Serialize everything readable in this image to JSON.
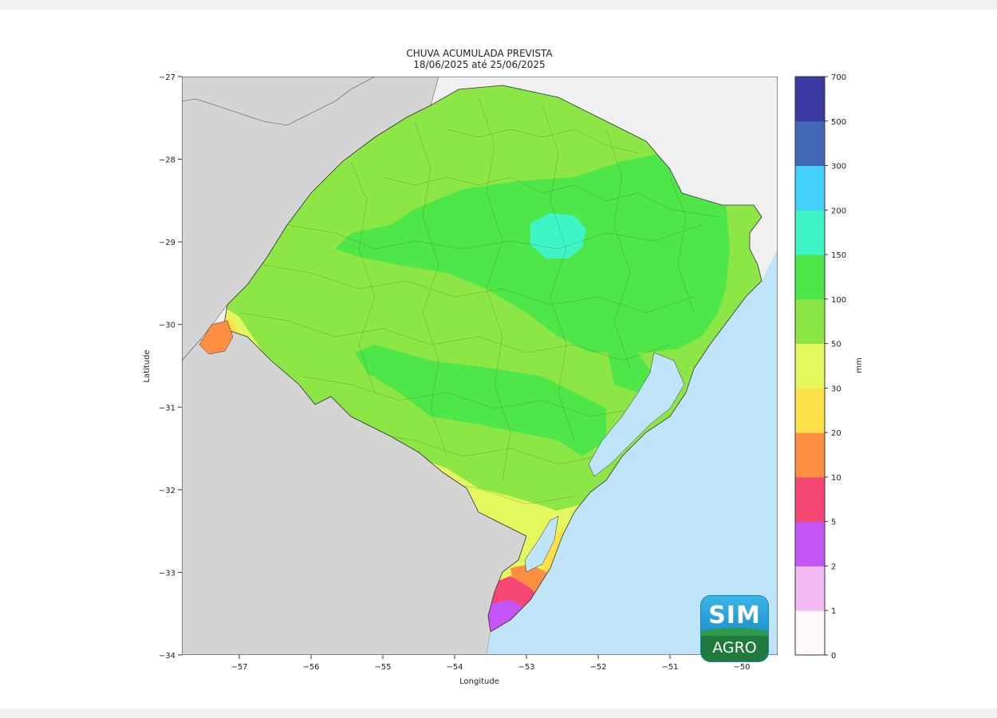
{
  "map": {
    "title_line1": "CHUVA ACUMULADA PREVISTA",
    "title_line2": "18/06/2025 até 25/06/2025",
    "xlabel": "Longitude",
    "ylabel": "Latitude",
    "xlim": [
      -57.8,
      -49.5
    ],
    "ylim": [
      -34,
      -27
    ],
    "xticks": [
      {
        "value": -57,
        "label": "−57"
      },
      {
        "value": -56,
        "label": "−56"
      },
      {
        "value": -55,
        "label": "−55"
      },
      {
        "value": -54,
        "label": "−54"
      },
      {
        "value": -53,
        "label": "−53"
      },
      {
        "value": -52,
        "label": "−52"
      },
      {
        "value": -51,
        "label": "−51"
      },
      {
        "value": -50,
        "label": "−50"
      }
    ],
    "yticks": [
      {
        "value": -27,
        "label": "−27"
      },
      {
        "value": -28,
        "label": "−28"
      },
      {
        "value": -29,
        "label": "−29"
      },
      {
        "value": -30,
        "label": "−30"
      },
      {
        "value": -31,
        "label": "−31"
      },
      {
        "value": -32,
        "label": "−32"
      },
      {
        "value": -33,
        "label": "−33"
      },
      {
        "value": -34,
        "label": "−34"
      }
    ],
    "colors": {
      "ocean": "#bfe3f7",
      "neighbor_land": "#d4d4d4",
      "background": "#f0f0f0",
      "land_base": "#8ce645"
    }
  },
  "colorbar": {
    "unit_label": "mm",
    "levels": [
      "0",
      "1",
      "2",
      "5",
      "10",
      "20",
      "30",
      "50",
      "100",
      "150",
      "200",
      "300",
      "500",
      "700"
    ],
    "colors": [
      "#fdf7fb",
      "#f2b8f2",
      "#c454f5",
      "#f54771",
      "#fd8f43",
      "#fde047",
      "#e4f75e",
      "#8ce645",
      "#4ee648",
      "#3df5c7",
      "#43d0fb",
      "#4468b8",
      "#3a3aa2"
    ]
  },
  "logo": {
    "line1": "SIM",
    "line2": "AGRO",
    "colors": {
      "top": "#2a9fd6",
      "bottom": "#1f7a3b"
    }
  }
}
